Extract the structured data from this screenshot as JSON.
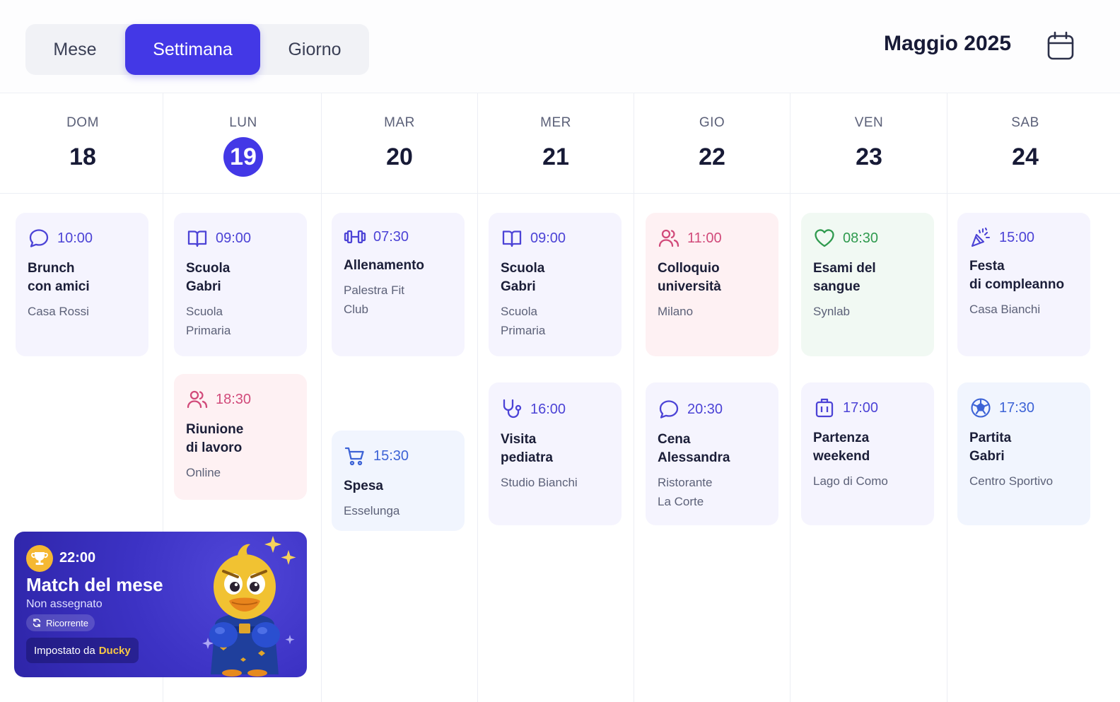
{
  "toolbar": {
    "views": [
      "Mese",
      "Settimana",
      "Giorno"
    ],
    "active_view": "Settimana",
    "month_title": "Maggio 2025",
    "calendar_icon": "calendar-icon"
  },
  "colors": {
    "accent": "#4338e6",
    "violet": "#4c43d6",
    "pink": "#d14a7a",
    "green": "#2f9a4e",
    "blue": "#3d63d6",
    "gold": "#f7c843"
  },
  "days": [
    {
      "dow": "DOM",
      "num": "18",
      "today": false
    },
    {
      "dow": "LUN",
      "num": "19",
      "today": true
    },
    {
      "dow": "MAR",
      "num": "20",
      "today": false
    },
    {
      "dow": "MER",
      "num": "21",
      "today": false
    },
    {
      "dow": "GIO",
      "num": "22",
      "today": false
    },
    {
      "dow": "VEN",
      "num": "23",
      "today": false
    },
    {
      "dow": "SAB",
      "num": "24",
      "today": false
    }
  ],
  "events": {
    "e0": {
      "time": "10:00",
      "title_lines": [
        "Brunch",
        "con amici"
      ],
      "place_lines": [
        "Casa Rossi"
      ],
      "icon": "chat-bubble-icon",
      "color": "violet"
    },
    "e1": {
      "time": "09:00",
      "title_lines": [
        "Scuola",
        "Gabri"
      ],
      "place_lines": [
        "Scuola",
        "Primaria"
      ],
      "icon": "open-book-icon",
      "color": "violet"
    },
    "e2": {
      "time": "18:30",
      "title_lines": [
        "Riunione",
        "di lavoro"
      ],
      "place_lines": [
        "Online"
      ],
      "icon": "people-icon",
      "color": "pink"
    },
    "e3": {
      "time": "07:30",
      "title_lines": [
        "Allenamento"
      ],
      "place_lines": [
        "Palestra Fit",
        "Club"
      ],
      "icon": "dumbbell-icon",
      "color": "violet"
    },
    "e4": {
      "time": "15:30",
      "title_lines": [
        "Spesa"
      ],
      "place_lines": [
        "Esselunga"
      ],
      "icon": "shopping-cart-icon",
      "color": "blue"
    },
    "e5": {
      "time": "09:00",
      "title_lines": [
        "Scuola",
        "Gabri"
      ],
      "place_lines": [
        "Scuola",
        "Primaria"
      ],
      "icon": "open-book-icon",
      "color": "violet"
    },
    "e6": {
      "time": "16:00",
      "title_lines": [
        "Visita",
        "pediatra"
      ],
      "place_lines": [
        "Studio Bianchi"
      ],
      "icon": "stethoscope-icon",
      "color": "violet"
    },
    "e7": {
      "time": "11:00",
      "title_lines": [
        "Colloquio",
        "università"
      ],
      "place_lines": [
        "Milano"
      ],
      "icon": "people-icon",
      "color": "pink"
    },
    "e8": {
      "time": "20:30",
      "title_lines": [
        "Cena",
        "Alessandra"
      ],
      "place_lines": [
        "Ristorante",
        "La Corte"
      ],
      "icon": "chat-bubble-icon",
      "color": "violet"
    },
    "e9": {
      "time": "08:30",
      "title_lines": [
        "Esami del",
        "sangue"
      ],
      "place_lines": [
        "Synlab"
      ],
      "icon": "heart-icon",
      "color": "green"
    },
    "e10": {
      "time": "17:00",
      "title_lines": [
        "Partenza",
        "weekend"
      ],
      "place_lines": [
        "Lago di Como"
      ],
      "icon": "luggage-icon",
      "color": "violet"
    },
    "e11": {
      "time": "15:00",
      "title_lines": [
        "Festa",
        "di compleanno"
      ],
      "place_lines": [
        "Casa Bianchi"
      ],
      "icon": "party-popper-icon",
      "color": "violet"
    },
    "e12": {
      "time": "17:30",
      "title_lines": [
        "Partita",
        "Gabri"
      ],
      "place_lines": [
        "Centro Sportivo"
      ],
      "icon": "soccer-ball-icon",
      "color": "blue"
    }
  },
  "promo": {
    "time": "22:00",
    "title": "Match del mese",
    "subtitle": "Non assegnato",
    "chip": "Ricorrente",
    "set_by_prefix": "Impostato da",
    "set_by_name": "Ducky",
    "icon": "trophy-icon",
    "mascot": "duck-boxer-mascot"
  }
}
